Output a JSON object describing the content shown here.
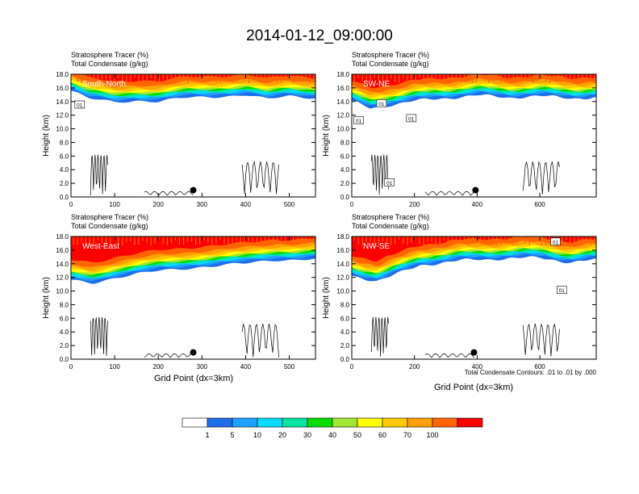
{
  "figure": {
    "title": "2014-01-12_09:00:00",
    "colorbar_colors": [
      "#ffffff",
      "#1e6eeb",
      "#1ea0ff",
      "#00dcff",
      "#00e6a0",
      "#00dc00",
      "#a0e632",
      "#ffff00",
      "#ffc800",
      "#ffa000",
      "#ff6400",
      "#ff0000"
    ],
    "colorbar_labels": [
      "1",
      "5",
      "10",
      "20",
      "30",
      "40",
      "50",
      "60",
      "70",
      "100"
    ],
    "contour_note": "Total Condensate Contours: .01 to .01 by .000"
  },
  "chart_data": [
    {
      "type": "heatmap",
      "panel_label": "South-North",
      "title_line1": "Stratosphere Tracer   (%)",
      "title_line2": "Total Condensate   (g/kg)",
      "ylabel": "Height (km)",
      "xlabel": "",
      "xlim": [
        0,
        560
      ],
      "ylim": [
        0,
        18
      ],
      "xticks": [
        "0",
        "100",
        "200",
        "300",
        "400",
        "500"
      ],
      "xtick_values": [
        0,
        100,
        200,
        300,
        400,
        500
      ],
      "yticks": [
        "0.0",
        "2.0",
        "4.0",
        "6.0",
        "8.0",
        "10.0",
        "12.0",
        "14.0",
        "16.0",
        "18.0"
      ],
      "tracer_bottom_km": [
        [
          0,
          15.6
        ],
        [
          40,
          14.4
        ],
        [
          100,
          13.9
        ],
        [
          150,
          14.2
        ],
        [
          200,
          14.0
        ],
        [
          260,
          14.5
        ],
        [
          320,
          14.7
        ],
        [
          400,
          15.0
        ],
        [
          450,
          14.3
        ],
        [
          500,
          14.8
        ],
        [
          560,
          14.6
        ]
      ],
      "marker_x": 280,
      "marker_y_km": 1.0,
      "contour_labels": [
        {
          "x": 20,
          "y": 13.5,
          "text": "01"
        }
      ]
    },
    {
      "type": "heatmap",
      "panel_label": "SW-NE",
      "title_line1": "Stratosphere Tracer   (%)",
      "title_line2": "Total Condensate   (g/kg)",
      "ylabel": "Height (km)",
      "xlabel": "",
      "xlim": [
        0,
        780
      ],
      "ylim": [
        0,
        18
      ],
      "xticks": [
        "0",
        "200",
        "400",
        "600"
      ],
      "xtick_values": [
        0,
        200,
        400,
        600
      ],
      "yticks": [
        "0.0",
        "2.0",
        "4.0",
        "6.0",
        "8.0",
        "10.0",
        "12.0",
        "14.0",
        "16.0",
        "18.0"
      ],
      "tracer_bottom_km": [
        [
          0,
          14.0
        ],
        [
          60,
          13.0
        ],
        [
          120,
          13.5
        ],
        [
          200,
          14.1
        ],
        [
          300,
          14.5
        ],
        [
          400,
          14.9
        ],
        [
          500,
          14.6
        ],
        [
          600,
          14.8
        ],
        [
          700,
          14.5
        ],
        [
          780,
          14.6
        ]
      ],
      "marker_x": 395,
      "marker_y_km": 1.0,
      "contour_labels": [
        {
          "x": 22,
          "y": 11.2,
          "text": "01"
        },
        {
          "x": 95,
          "y": 13.7,
          "text": "01"
        },
        {
          "x": 190,
          "y": 11.5,
          "text": "01"
        },
        {
          "x": 120,
          "y": 2.1,
          "text": "01"
        }
      ]
    },
    {
      "type": "heatmap",
      "panel_label": "West-East",
      "title_line1": "Stratosphere Tracer   (%)",
      "title_line2": "Total Condensate   (g/kg)",
      "ylabel": "Height (km)",
      "xlabel": "Grid Point (dx=3km)",
      "xlim": [
        0,
        560
      ],
      "ylim": [
        0,
        18
      ],
      "xticks": [
        "0",
        "100",
        "200",
        "300",
        "400",
        "500"
      ],
      "xtick_values": [
        0,
        100,
        200,
        300,
        400,
        500
      ],
      "yticks": [
        "0.0",
        "2.0",
        "4.0",
        "6.0",
        "8.0",
        "10.0",
        "12.0",
        "14.0",
        "16.0",
        "18.0"
      ],
      "tracer_bottom_km": [
        [
          0,
          11.5
        ],
        [
          50,
          11.2
        ],
        [
          100,
          12.0
        ],
        [
          150,
          12.5
        ],
        [
          200,
          12.9
        ],
        [
          300,
          13.6
        ],
        [
          400,
          14.0
        ],
        [
          470,
          14.6
        ],
        [
          560,
          14.7
        ]
      ],
      "marker_x": 280,
      "marker_y_km": 1.0,
      "contour_labels": []
    },
    {
      "type": "heatmap",
      "panel_label": "NW-SE",
      "title_line1": "Stratosphere Tracer   (%)",
      "title_line2": "Total Condensate   (g/kg)",
      "ylabel": "Height (km)",
      "xlabel": "Grid Point (dx=3km)",
      "xlim": [
        0,
        780
      ],
      "ylim": [
        0,
        18
      ],
      "xticks": [
        "0",
        "200",
        "400",
        "600"
      ],
      "xtick_values": [
        0,
        200,
        400,
        600
      ],
      "yticks": [
        "0.0",
        "2.0",
        "4.0",
        "6.0",
        "8.0",
        "10.0",
        "12.0",
        "14.0",
        "16.0",
        "18.0"
      ],
      "tracer_bottom_km": [
        [
          0,
          12.2
        ],
        [
          80,
          11.5
        ],
        [
          150,
          12.6
        ],
        [
          220,
          13.8
        ],
        [
          350,
          14.5
        ],
        [
          500,
          14.8
        ],
        [
          600,
          14.9
        ],
        [
          700,
          14.2
        ],
        [
          780,
          14.6
        ]
      ],
      "marker_x": 390,
      "marker_y_km": 1.0,
      "contour_labels": [
        {
          "x": 650,
          "y": 17.2,
          "text": "01"
        },
        {
          "x": 670,
          "y": 10.1,
          "text": "01"
        }
      ]
    }
  ]
}
